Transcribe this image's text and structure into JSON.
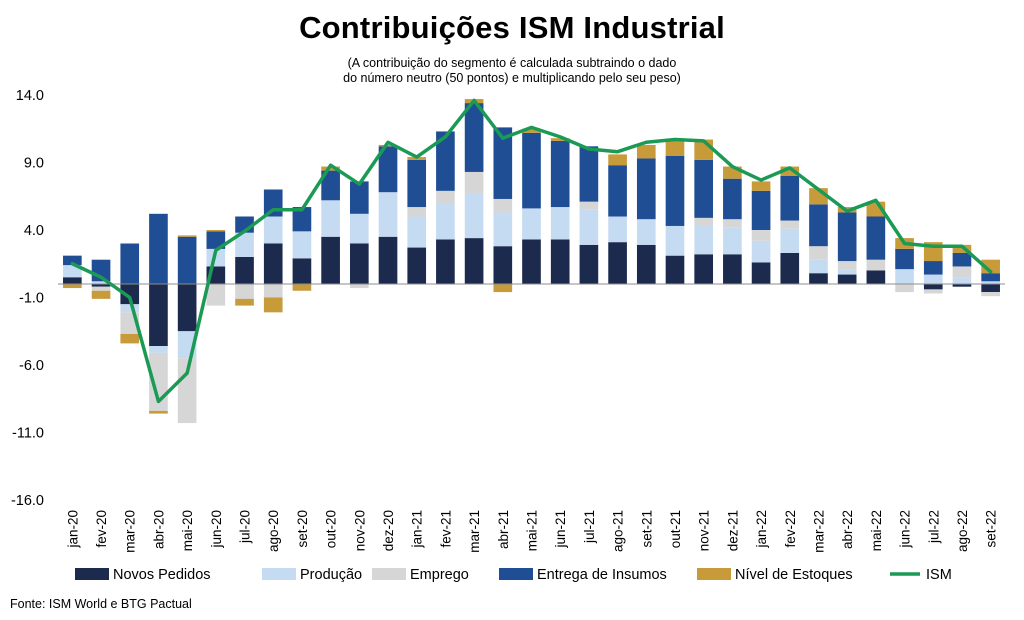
{
  "title": "Contribuições ISM Industrial",
  "subtitle_line1": "(A contribuição do segmento é calculada subtraindo o dado",
  "subtitle_line2": "do número neutro (50 pontos) e multiplicando pelo seu peso)",
  "source": "Fonte: ISM World e BTG Pactual",
  "colors": {
    "novos": "#1c2a4e",
    "producao": "#c5dbf2",
    "emprego": "#d6d6d6",
    "insumos": "#1f4e94",
    "estoques": "#c79a3a",
    "ism": "#1a9a55"
  },
  "chart_data": {
    "type": "bar",
    "stacked": true,
    "title": "Contribuições ISM Industrial",
    "xlabel": "",
    "ylabel": "",
    "ylim": [
      -16,
      14
    ],
    "yticks": [
      "14.0",
      "9.0",
      "4.0",
      "-1.0",
      "-6.0",
      "-11.0",
      "-16.0"
    ],
    "ytick_values": [
      14,
      9,
      4,
      -1,
      -6,
      -11,
      -16
    ],
    "categories": [
      "jan-20",
      "fev-20",
      "mar-20",
      "abr-20",
      "mai-20",
      "jun-20",
      "jul-20",
      "ago-20",
      "set-20",
      "out-20",
      "nov-20",
      "dez-20",
      "jan-21",
      "fev-21",
      "mar-21",
      "abr-21",
      "mai-21",
      "jun-21",
      "jul-21",
      "ago-21",
      "set-21",
      "out-21",
      "nov-21",
      "dez-21",
      "jan-22",
      "fev-22",
      "mar-22",
      "abr-22",
      "mai-22",
      "jun-22",
      "jul-22",
      "ago-22",
      "set-22"
    ],
    "series": [
      {
        "name": "Novos Pedidos",
        "key": "novos",
        "values": [
          0.5,
          -0.2,
          -1.5,
          -4.6,
          -3.5,
          1.3,
          2.0,
          3.0,
          1.9,
          3.5,
          3.0,
          3.5,
          2.7,
          3.3,
          3.4,
          2.8,
          3.3,
          3.3,
          2.9,
          3.1,
          2.9,
          2.1,
          2.2,
          2.2,
          1.6,
          2.3,
          0.8,
          0.7,
          1.0,
          0.0,
          -0.4,
          -0.2,
          -0.6
        ]
      },
      {
        "name": "Produção",
        "key": "producao",
        "values": [
          0.9,
          0.2,
          -0.6,
          -0.5,
          -2.0,
          1.3,
          1.8,
          2.0,
          2.0,
          2.7,
          2.2,
          3.3,
          2.3,
          2.7,
          3.3,
          2.5,
          2.3,
          2.4,
          2.6,
          1.9,
          1.9,
          2.2,
          2.1,
          2.0,
          1.6,
          1.8,
          1.0,
          0.4,
          0.0,
          1.1,
          0.7,
          0.5,
          0.2
        ]
      },
      {
        "name": "Emprego",
        "key": "emprego",
        "values": [
          0.0,
          -0.3,
          -1.6,
          -4.3,
          -4.8,
          -1.6,
          -1.1,
          -1.0,
          0.0,
          0.0,
          -0.3,
          0.0,
          0.7,
          0.9,
          1.6,
          1.0,
          0.0,
          0.0,
          0.6,
          0.0,
          0.0,
          0.0,
          0.6,
          0.6,
          0.8,
          0.6,
          1.0,
          0.6,
          0.8,
          -0.6,
          -0.3,
          0.8,
          -0.3
        ]
      },
      {
        "name": "Entrega de Insumos",
        "key": "insumos",
        "values": [
          0.7,
          1.6,
          3.0,
          5.2,
          3.5,
          1.3,
          1.2,
          2.0,
          1.8,
          2.2,
          2.4,
          3.4,
          3.5,
          4.4,
          5.1,
          5.3,
          5.6,
          4.9,
          4.1,
          3.8,
          4.5,
          5.2,
          4.3,
          3.0,
          2.9,
          3.3,
          3.1,
          3.6,
          3.2,
          1.5,
          1.0,
          1.0,
          0.6
        ]
      },
      {
        "name": "Nível de Estoques",
        "key": "estoques",
        "values": [
          -0.3,
          -0.6,
          -0.7,
          -0.2,
          0.1,
          0.1,
          -0.5,
          -1.1,
          -0.5,
          0.3,
          0.0,
          0.1,
          0.2,
          0.0,
          0.3,
          -0.6,
          0.3,
          0.2,
          0.0,
          0.8,
          1.0,
          1.2,
          1.5,
          0.9,
          0.7,
          0.7,
          1.2,
          0.4,
          1.1,
          0.8,
          1.4,
          0.6,
          1.0
        ]
      },
      {
        "name": "ISM",
        "key": "ism",
        "type": "line",
        "values": [
          1.5,
          0.5,
          -1.0,
          -8.7,
          -6.6,
          2.5,
          3.9,
          5.5,
          5.5,
          8.8,
          7.4,
          10.5,
          9.4,
          10.9,
          13.6,
          10.8,
          11.6,
          10.9,
          10.0,
          9.8,
          10.5,
          10.7,
          10.6,
          8.7,
          7.7,
          8.6,
          7.0,
          5.4,
          6.2,
          3.0,
          2.8,
          2.8,
          0.9
        ]
      }
    ],
    "legend": [
      "Novos Pedidos",
      "Produção",
      "Emprego",
      "Entrega de Insumos",
      "Nível de Estoques",
      "ISM"
    ],
    "legend_position": "bottom",
    "grid": false
  }
}
